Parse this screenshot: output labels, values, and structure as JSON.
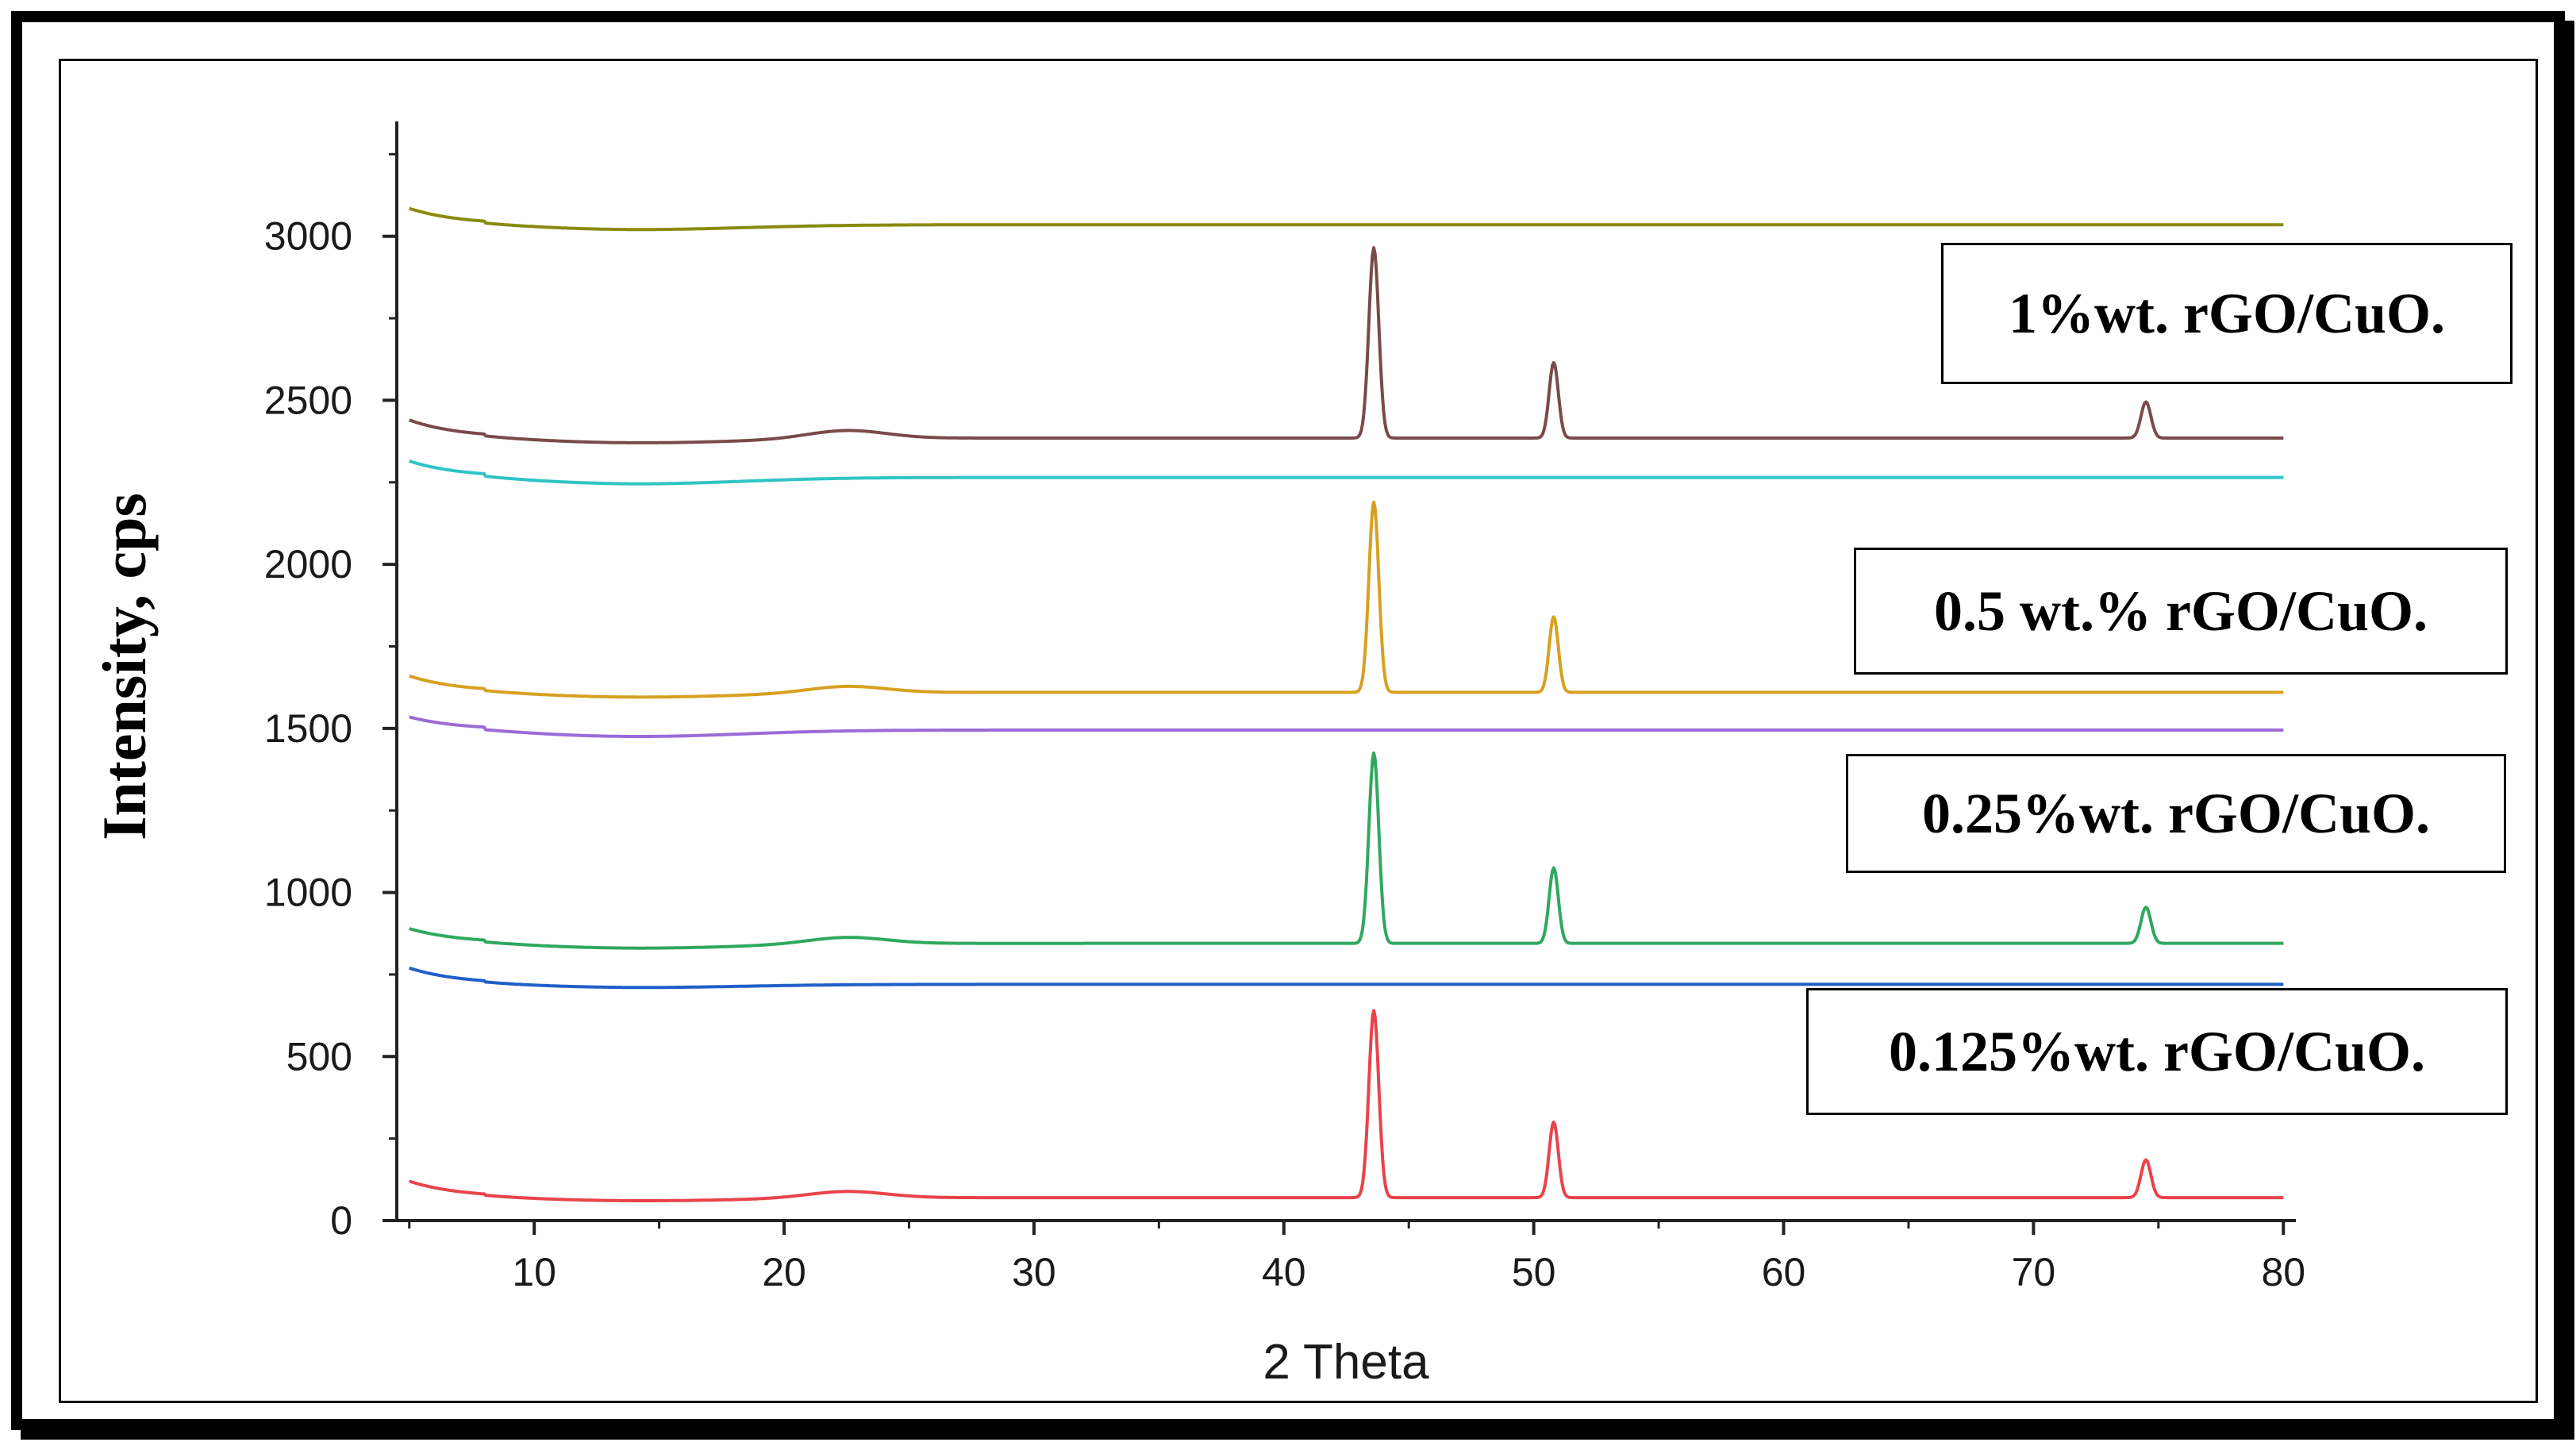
{
  "chart_data": {
    "type": "line",
    "title": "",
    "xlabel": "2 Theta",
    "ylabel": "Intensity, cps",
    "xlim": [
      4.5,
      80.5
    ],
    "ylim": [
      0,
      3350
    ],
    "xticks": [
      10,
      20,
      30,
      40,
      50,
      60,
      70,
      80
    ],
    "yticks": [
      0,
      500,
      1000,
      1500,
      2000,
      2500,
      3000
    ],
    "grid": false,
    "labels": [
      {
        "text": "1%wt. rGO/CuO.",
        "series": "1%wt. rGO/CuO."
      },
      {
        "text": "0.5 wt.% rGO/CuO.",
        "series": "0.5 wt.% rGO/CuO."
      },
      {
        "text": "0.25%wt. rGO/CuO.",
        "series": "0.25%wt. rGO/CuO."
      },
      {
        "text": "0.125%wt. rGO/CuO.",
        "series": "0.125%wt. rGO/CuO."
      }
    ],
    "series": [
      {
        "name": "0.125%wt. rGO/CuO.",
        "color": "#e8434b",
        "baseline": 70,
        "hump": 20,
        "start": 120,
        "dip": 60,
        "peaks": [
          [
            43.6,
            570,
            0.28
          ],
          [
            50.8,
            230,
            0.26
          ],
          [
            74.5,
            115,
            0.28
          ]
        ]
      },
      {
        "name": "baseline-blue",
        "color": "#1f5fc8",
        "baseline": 720,
        "hump": 0,
        "start": 770,
        "dip": 710,
        "peaks": []
      },
      {
        "name": "0.25%wt. rGO/CuO.",
        "color": "#2fa85e",
        "baseline": 845,
        "hump": 20,
        "start": 890,
        "dip": 830,
        "peaks": [
          [
            43.6,
            580,
            0.28
          ],
          [
            50.8,
            230,
            0.26
          ],
          [
            74.5,
            110,
            0.28
          ]
        ]
      },
      {
        "name": "baseline-violet",
        "color": "#9b6bd8",
        "baseline": 1495,
        "hump": 0,
        "start": 1535,
        "dip": 1475,
        "peaks": []
      },
      {
        "name": "0.5 wt.% rGO/CuO.",
        "color": "#d8a020",
        "baseline": 1610,
        "hump": 20,
        "start": 1660,
        "dip": 1595,
        "peaks": [
          [
            43.6,
            580,
            0.28
          ],
          [
            50.8,
            230,
            0.26
          ]
        ]
      },
      {
        "name": "baseline-cyan",
        "color": "#2fc4c4",
        "baseline": 2265,
        "hump": 0,
        "start": 2315,
        "dip": 2245,
        "peaks": []
      },
      {
        "name": "1%wt. rGO/CuO.",
        "color": "#7a4a4a",
        "baseline": 2385,
        "hump": 25,
        "start": 2440,
        "dip": 2370,
        "peaks": [
          [
            43.6,
            580,
            0.28
          ],
          [
            50.8,
            230,
            0.26
          ],
          [
            74.5,
            110,
            0.28
          ]
        ]
      },
      {
        "name": "baseline-olive",
        "color": "#8a8a10",
        "baseline": 3035,
        "hump": 0,
        "start": 3085,
        "dip": 3020,
        "peaks": []
      }
    ]
  }
}
